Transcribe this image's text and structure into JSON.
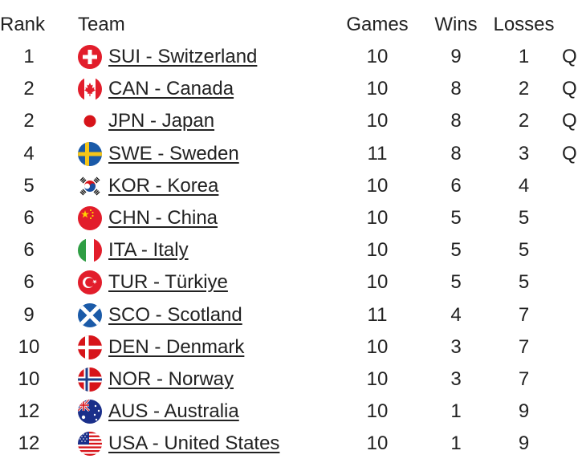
{
  "header": {
    "rank": "Rank",
    "team": "Team",
    "games": "Games",
    "wins": "Wins",
    "losses": "Losses"
  },
  "rows": [
    {
      "rank": "1",
      "team": "SUI - Switzerland",
      "flag": "switzerland-flag-icon",
      "games": "10",
      "wins": "9",
      "losses": "1",
      "q": "Q"
    },
    {
      "rank": "2",
      "team": "CAN - Canada",
      "flag": "canada-flag-icon",
      "games": "10",
      "wins": "8",
      "losses": "2",
      "q": "Q"
    },
    {
      "rank": "2",
      "team": "JPN - Japan",
      "flag": "japan-flag-icon",
      "games": "10",
      "wins": "8",
      "losses": "2",
      "q": "Q"
    },
    {
      "rank": "4",
      "team": "SWE - Sweden",
      "flag": "sweden-flag-icon",
      "games": "11",
      "wins": "8",
      "losses": "3",
      "q": "Q"
    },
    {
      "rank": "5",
      "team": "KOR - Korea",
      "flag": "korea-flag-icon",
      "games": "10",
      "wins": "6",
      "losses": "4",
      "q": ""
    },
    {
      "rank": "6",
      "team": "CHN - China",
      "flag": "china-flag-icon",
      "games": "10",
      "wins": "5",
      "losses": "5",
      "q": ""
    },
    {
      "rank": "6",
      "team": "ITA - Italy",
      "flag": "italy-flag-icon",
      "games": "10",
      "wins": "5",
      "losses": "5",
      "q": ""
    },
    {
      "rank": "6",
      "team": "TUR - Türkiye",
      "flag": "turkiye-flag-icon",
      "games": "10",
      "wins": "5",
      "losses": "5",
      "q": ""
    },
    {
      "rank": "9",
      "team": "SCO - Scotland",
      "flag": "scotland-flag-icon",
      "games": "11",
      "wins": "4",
      "losses": "7",
      "q": ""
    },
    {
      "rank": "10",
      "team": "DEN - Denmark",
      "flag": "denmark-flag-icon",
      "games": "10",
      "wins": "3",
      "losses": "7",
      "q": ""
    },
    {
      "rank": "10",
      "team": "NOR - Norway",
      "flag": "norway-flag-icon",
      "games": "10",
      "wins": "3",
      "losses": "7",
      "q": ""
    },
    {
      "rank": "12",
      "team": "AUS - Australia",
      "flag": "australia-flag-icon",
      "games": "10",
      "wins": "1",
      "losses": "9",
      "q": ""
    },
    {
      "rank": "12",
      "team": "USA - United States",
      "flag": "usa-flag-icon",
      "games": "10",
      "wins": "1",
      "losses": "9",
      "q": ""
    }
  ]
}
